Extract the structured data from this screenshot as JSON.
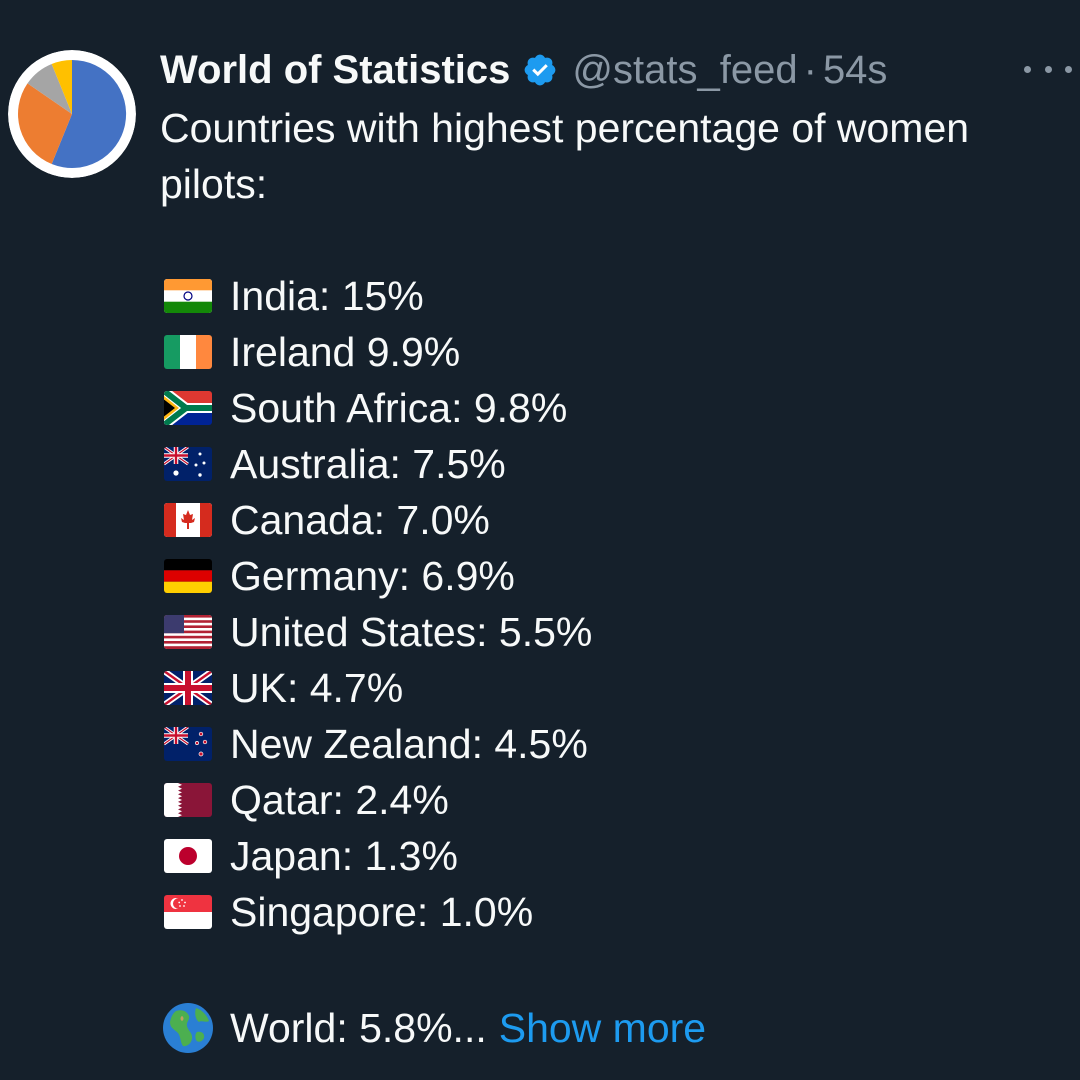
{
  "tweet": {
    "author_name": "World of Statistics",
    "handle": "@stats_feed",
    "separator": "·",
    "time": "54s",
    "intro_text": "Countries with highest percentage of women pilots:",
    "rows": [
      {
        "text": "India: 15%",
        "flag": "india-flag-icon"
      },
      {
        "text": "Ireland 9.9%",
        "flag": "ireland-flag-icon"
      },
      {
        "text": "South Africa: 9.8%",
        "flag": "south-africa-flag-icon"
      },
      {
        "text": "Australia: 7.5%",
        "flag": "australia-flag-icon"
      },
      {
        "text": "Canada: 7.0%",
        "flag": "canada-flag-icon"
      },
      {
        "text": "Germany: 6.9%",
        "flag": "germany-flag-icon"
      },
      {
        "text": "United States: 5.5%",
        "flag": "us-flag-icon"
      },
      {
        "text": "UK: 4.7%",
        "flag": "uk-flag-icon"
      },
      {
        "text": "New Zealand: 4.5%",
        "flag": "new-zealand-flag-icon"
      },
      {
        "text": "Qatar: 2.4%",
        "flag": "qatar-flag-icon"
      },
      {
        "text": "Japan: 1.3%",
        "flag": "japan-flag-icon"
      },
      {
        "text": "Singapore: 1.0%",
        "flag": "singapore-flag-icon"
      }
    ],
    "world_text": "World: 5.8%...",
    "show_more": "Show more"
  },
  "colors": {
    "background": "#15202b",
    "text": "#f7f9f9",
    "secondary": "#8b98a5",
    "link": "#1d9bf0"
  }
}
